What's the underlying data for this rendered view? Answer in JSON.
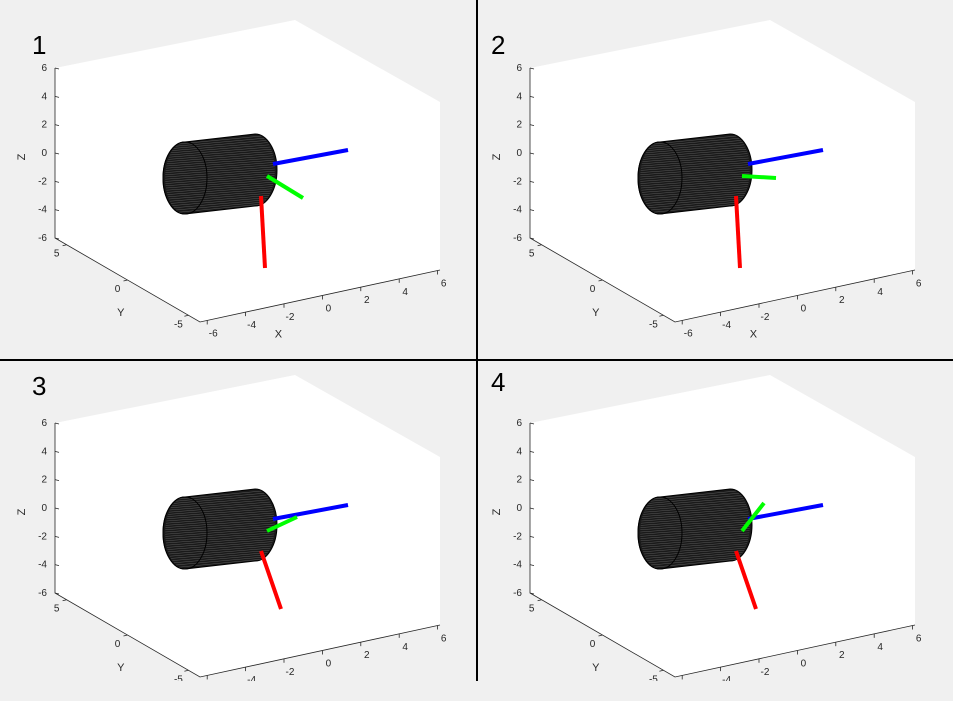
{
  "panels": [
    {
      "label": "1",
      "green_axis": "down-right"
    },
    {
      "label": "2",
      "green_axis": "right"
    },
    {
      "label": "3",
      "green_axis": "up-right"
    },
    {
      "label": "4",
      "green_axis": "up"
    }
  ],
  "axes": {
    "xlabel": "X",
    "ylabel": "Y",
    "zlabel": "Z",
    "x_ticks": [
      "-6",
      "-4",
      "-2",
      "0",
      "2",
      "4",
      "6"
    ],
    "y_ticks": [
      "5",
      "0",
      "-5"
    ],
    "z_ticks": [
      "6",
      "4",
      "2",
      "0",
      "-2",
      "-4",
      "-6"
    ]
  },
  "colors": {
    "x_axis": "#ff0000",
    "y_axis": "#00ff00",
    "z_axis": "#0000ff",
    "cylinder": "#1a1a1a",
    "background": "#f0f0f0",
    "plot_area": "#ffffff"
  }
}
